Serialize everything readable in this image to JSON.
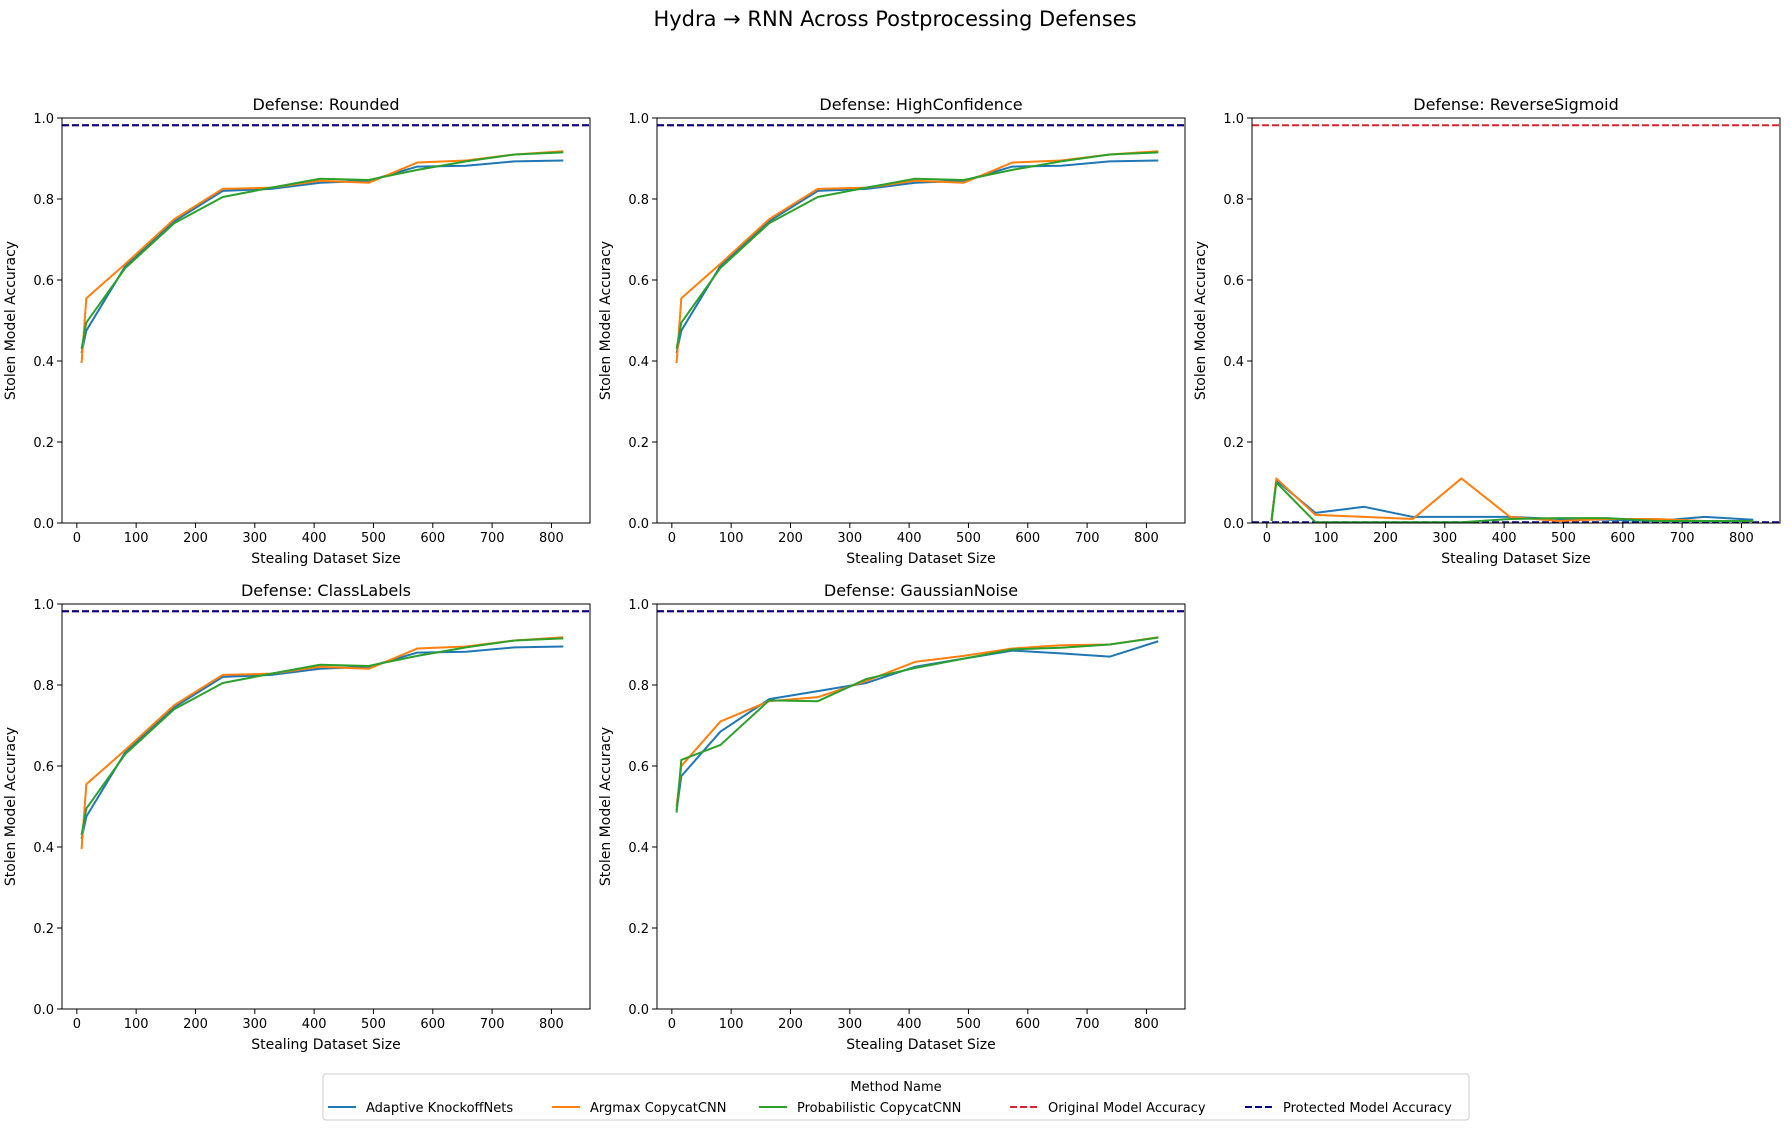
{
  "figure": {
    "suptitle": "Hydra → RNN Across Postprocessing Defenses"
  },
  "legend": {
    "title": "Method Name",
    "placement": "bottom-center",
    "entries": [
      {
        "label": "Adaptive KnockoffNets",
        "color": "#1f77b4",
        "style": "solid"
      },
      {
        "label": "Argmax CopycatCNN",
        "color": "#ff7f0e",
        "style": "solid"
      },
      {
        "label": "Probabilistic CopycatCNN",
        "color": "#2ca02c",
        "style": "solid"
      },
      {
        "label": "Original Model Accuracy",
        "color": "#d62728",
        "style": "dashed"
      },
      {
        "label": "Protected Model Accuracy",
        "color": "#00008b",
        "style": "dashed"
      }
    ]
  },
  "chart_data": [
    {
      "type": "line",
      "title": "Defense: Rounded",
      "xlabel": "Stealing Dataset Size",
      "ylabel": "Stolen Model Accuracy",
      "xlim": [
        -25,
        865
      ],
      "ylim": [
        0,
        1.0
      ],
      "xticks": [
        0,
        100,
        200,
        300,
        400,
        500,
        600,
        700,
        800
      ],
      "yticks": [
        0.0,
        0.2,
        0.4,
        0.6,
        0.8,
        1.0
      ],
      "hlines": [
        {
          "name": "Original Model Accuracy",
          "y": 0.982,
          "color": "#d62728"
        },
        {
          "name": "Protected Model Accuracy",
          "y": 0.982,
          "color": "#00008b"
        }
      ],
      "series": [
        {
          "name": "Adaptive KnockoffNets",
          "color": "#1f77b4",
          "x": [
            8,
            16,
            82,
            164,
            246,
            328,
            410,
            492,
            574,
            656,
            738,
            820
          ],
          "y": [
            0.42,
            0.475,
            0.635,
            0.745,
            0.82,
            0.825,
            0.84,
            0.845,
            0.88,
            0.882,
            0.893,
            0.895
          ]
        },
        {
          "name": "Argmax CopycatCNN",
          "color": "#ff7f0e",
          "x": [
            8,
            16,
            82,
            164,
            246,
            328,
            410,
            492,
            574,
            656,
            738,
            820
          ],
          "y": [
            0.395,
            0.555,
            0.64,
            0.75,
            0.825,
            0.828,
            0.845,
            0.84,
            0.89,
            0.895,
            0.91,
            0.918
          ]
        },
        {
          "name": "Probabilistic CopycatCNN",
          "color": "#2ca02c",
          "x": [
            8,
            16,
            82,
            164,
            246,
            328,
            410,
            492,
            574,
            656,
            738,
            820
          ],
          "y": [
            0.43,
            0.495,
            0.63,
            0.74,
            0.805,
            0.828,
            0.85,
            0.847,
            0.872,
            0.893,
            0.91,
            0.915
          ]
        }
      ]
    },
    {
      "type": "line",
      "title": "Defense: HighConfidence",
      "xlabel": "Stealing Dataset Size",
      "ylabel": "Stolen Model Accuracy",
      "xlim": [
        -25,
        865
      ],
      "ylim": [
        0,
        1.0
      ],
      "xticks": [
        0,
        100,
        200,
        300,
        400,
        500,
        600,
        700,
        800
      ],
      "yticks": [
        0.0,
        0.2,
        0.4,
        0.6,
        0.8,
        1.0
      ],
      "hlines": [
        {
          "name": "Original Model Accuracy",
          "y": 0.982,
          "color": "#d62728"
        },
        {
          "name": "Protected Model Accuracy",
          "y": 0.982,
          "color": "#00008b"
        }
      ],
      "series": [
        {
          "name": "Adaptive KnockoffNets",
          "color": "#1f77b4",
          "x": [
            8,
            16,
            82,
            164,
            246,
            328,
            410,
            492,
            574,
            656,
            738,
            820
          ],
          "y": [
            0.42,
            0.475,
            0.635,
            0.745,
            0.82,
            0.825,
            0.84,
            0.845,
            0.88,
            0.882,
            0.893,
            0.895
          ]
        },
        {
          "name": "Argmax CopycatCNN",
          "color": "#ff7f0e",
          "x": [
            8,
            16,
            82,
            164,
            246,
            328,
            410,
            492,
            574,
            656,
            738,
            820
          ],
          "y": [
            0.395,
            0.555,
            0.64,
            0.75,
            0.825,
            0.828,
            0.845,
            0.84,
            0.89,
            0.895,
            0.91,
            0.918
          ]
        },
        {
          "name": "Probabilistic CopycatCNN",
          "color": "#2ca02c",
          "x": [
            8,
            16,
            82,
            164,
            246,
            328,
            410,
            492,
            574,
            656,
            738,
            820
          ],
          "y": [
            0.43,
            0.495,
            0.63,
            0.74,
            0.805,
            0.828,
            0.85,
            0.847,
            0.872,
            0.893,
            0.91,
            0.915
          ]
        }
      ]
    },
    {
      "type": "line",
      "title": "Defense: ReverseSigmoid",
      "xlabel": "Stealing Dataset Size",
      "ylabel": "Stolen Model Accuracy",
      "xlim": [
        -25,
        865
      ],
      "ylim": [
        0,
        1.0
      ],
      "xticks": [
        0,
        100,
        200,
        300,
        400,
        500,
        600,
        700,
        800
      ],
      "yticks": [
        0.0,
        0.2,
        0.4,
        0.6,
        0.8,
        1.0
      ],
      "hlines": [
        {
          "name": "Original Model Accuracy",
          "y": 0.982,
          "color": "#d62728"
        },
        {
          "name": "Protected Model Accuracy",
          "y": 0.002,
          "color": "#00008b"
        }
      ],
      "series": [
        {
          "name": "Adaptive KnockoffNets",
          "color": "#1f77b4",
          "x": [
            8,
            16,
            82,
            164,
            246,
            328,
            410,
            492,
            574,
            656,
            738,
            820
          ],
          "y": [
            0.01,
            0.105,
            0.025,
            0.04,
            0.015,
            0.015,
            0.015,
            0.01,
            0.008,
            0.005,
            0.015,
            0.008
          ]
        },
        {
          "name": "Argmax CopycatCNN",
          "color": "#ff7f0e",
          "x": [
            8,
            16,
            82,
            164,
            246,
            328,
            410,
            492,
            574,
            656,
            738,
            820
          ],
          "y": [
            0.005,
            0.11,
            0.02,
            0.015,
            0.01,
            0.11,
            0.015,
            0.005,
            0.01,
            0.01,
            0.005,
            0.005
          ]
        },
        {
          "name": "Probabilistic CopycatCNN",
          "color": "#2ca02c",
          "x": [
            8,
            16,
            82,
            164,
            246,
            328,
            410,
            492,
            574,
            656,
            738,
            820
          ],
          "y": [
            0.005,
            0.1,
            0.002,
            0.002,
            0.002,
            0.002,
            0.01,
            0.012,
            0.012,
            0.005,
            0.005,
            0.005
          ]
        }
      ]
    },
    {
      "type": "line",
      "title": "Defense: ClassLabels",
      "xlabel": "Stealing Dataset Size",
      "ylabel": "Stolen Model Accuracy",
      "xlim": [
        -25,
        865
      ],
      "ylim": [
        0,
        1.0
      ],
      "xticks": [
        0,
        100,
        200,
        300,
        400,
        500,
        600,
        700,
        800
      ],
      "yticks": [
        0.0,
        0.2,
        0.4,
        0.6,
        0.8,
        1.0
      ],
      "hlines": [
        {
          "name": "Original Model Accuracy",
          "y": 0.982,
          "color": "#d62728"
        },
        {
          "name": "Protected Model Accuracy",
          "y": 0.982,
          "color": "#00008b"
        }
      ],
      "series": [
        {
          "name": "Adaptive KnockoffNets",
          "color": "#1f77b4",
          "x": [
            8,
            16,
            82,
            164,
            246,
            328,
            410,
            492,
            574,
            656,
            738,
            820
          ],
          "y": [
            0.42,
            0.475,
            0.635,
            0.745,
            0.82,
            0.825,
            0.84,
            0.845,
            0.88,
            0.882,
            0.893,
            0.895
          ]
        },
        {
          "name": "Argmax CopycatCNN",
          "color": "#ff7f0e",
          "x": [
            8,
            16,
            82,
            164,
            246,
            328,
            410,
            492,
            574,
            656,
            738,
            820
          ],
          "y": [
            0.395,
            0.555,
            0.64,
            0.75,
            0.825,
            0.828,
            0.845,
            0.84,
            0.89,
            0.895,
            0.91,
            0.918
          ]
        },
        {
          "name": "Probabilistic CopycatCNN",
          "color": "#2ca02c",
          "x": [
            8,
            16,
            82,
            164,
            246,
            328,
            410,
            492,
            574,
            656,
            738,
            820
          ],
          "y": [
            0.43,
            0.495,
            0.63,
            0.74,
            0.805,
            0.828,
            0.85,
            0.847,
            0.872,
            0.893,
            0.91,
            0.915
          ]
        }
      ]
    },
    {
      "type": "line",
      "title": "Defense: GaussianNoise",
      "xlabel": "Stealing Dataset Size",
      "ylabel": "Stolen Model Accuracy",
      "xlim": [
        -25,
        865
      ],
      "ylim": [
        0,
        1.0
      ],
      "xticks": [
        0,
        100,
        200,
        300,
        400,
        500,
        600,
        700,
        800
      ],
      "yticks": [
        0.0,
        0.2,
        0.4,
        0.6,
        0.8,
        1.0
      ],
      "hlines": [
        {
          "name": "Original Model Accuracy",
          "y": 0.982,
          "color": "#d62728"
        },
        {
          "name": "Protected Model Accuracy",
          "y": 0.982,
          "color": "#00008b"
        }
      ],
      "series": [
        {
          "name": "Adaptive KnockoffNets",
          "color": "#1f77b4",
          "x": [
            8,
            16,
            82,
            164,
            246,
            328,
            410,
            492,
            574,
            656,
            738,
            820
          ],
          "y": [
            0.49,
            0.575,
            0.685,
            0.765,
            0.785,
            0.805,
            0.845,
            0.865,
            0.885,
            0.878,
            0.87,
            0.908
          ]
        },
        {
          "name": "Argmax CopycatCNN",
          "color": "#ff7f0e",
          "x": [
            8,
            16,
            82,
            164,
            246,
            328,
            410,
            492,
            574,
            656,
            738,
            820
          ],
          "y": [
            0.5,
            0.6,
            0.71,
            0.76,
            0.77,
            0.81,
            0.857,
            0.872,
            0.89,
            0.898,
            0.9,
            0.918
          ]
        },
        {
          "name": "Probabilistic CopycatCNN",
          "color": "#2ca02c",
          "x": [
            8,
            16,
            82,
            164,
            246,
            328,
            410,
            492,
            574,
            656,
            738,
            820
          ],
          "y": [
            0.485,
            0.615,
            0.652,
            0.762,
            0.76,
            0.815,
            0.842,
            0.865,
            0.888,
            0.892,
            0.9,
            0.917
          ]
        }
      ]
    }
  ]
}
